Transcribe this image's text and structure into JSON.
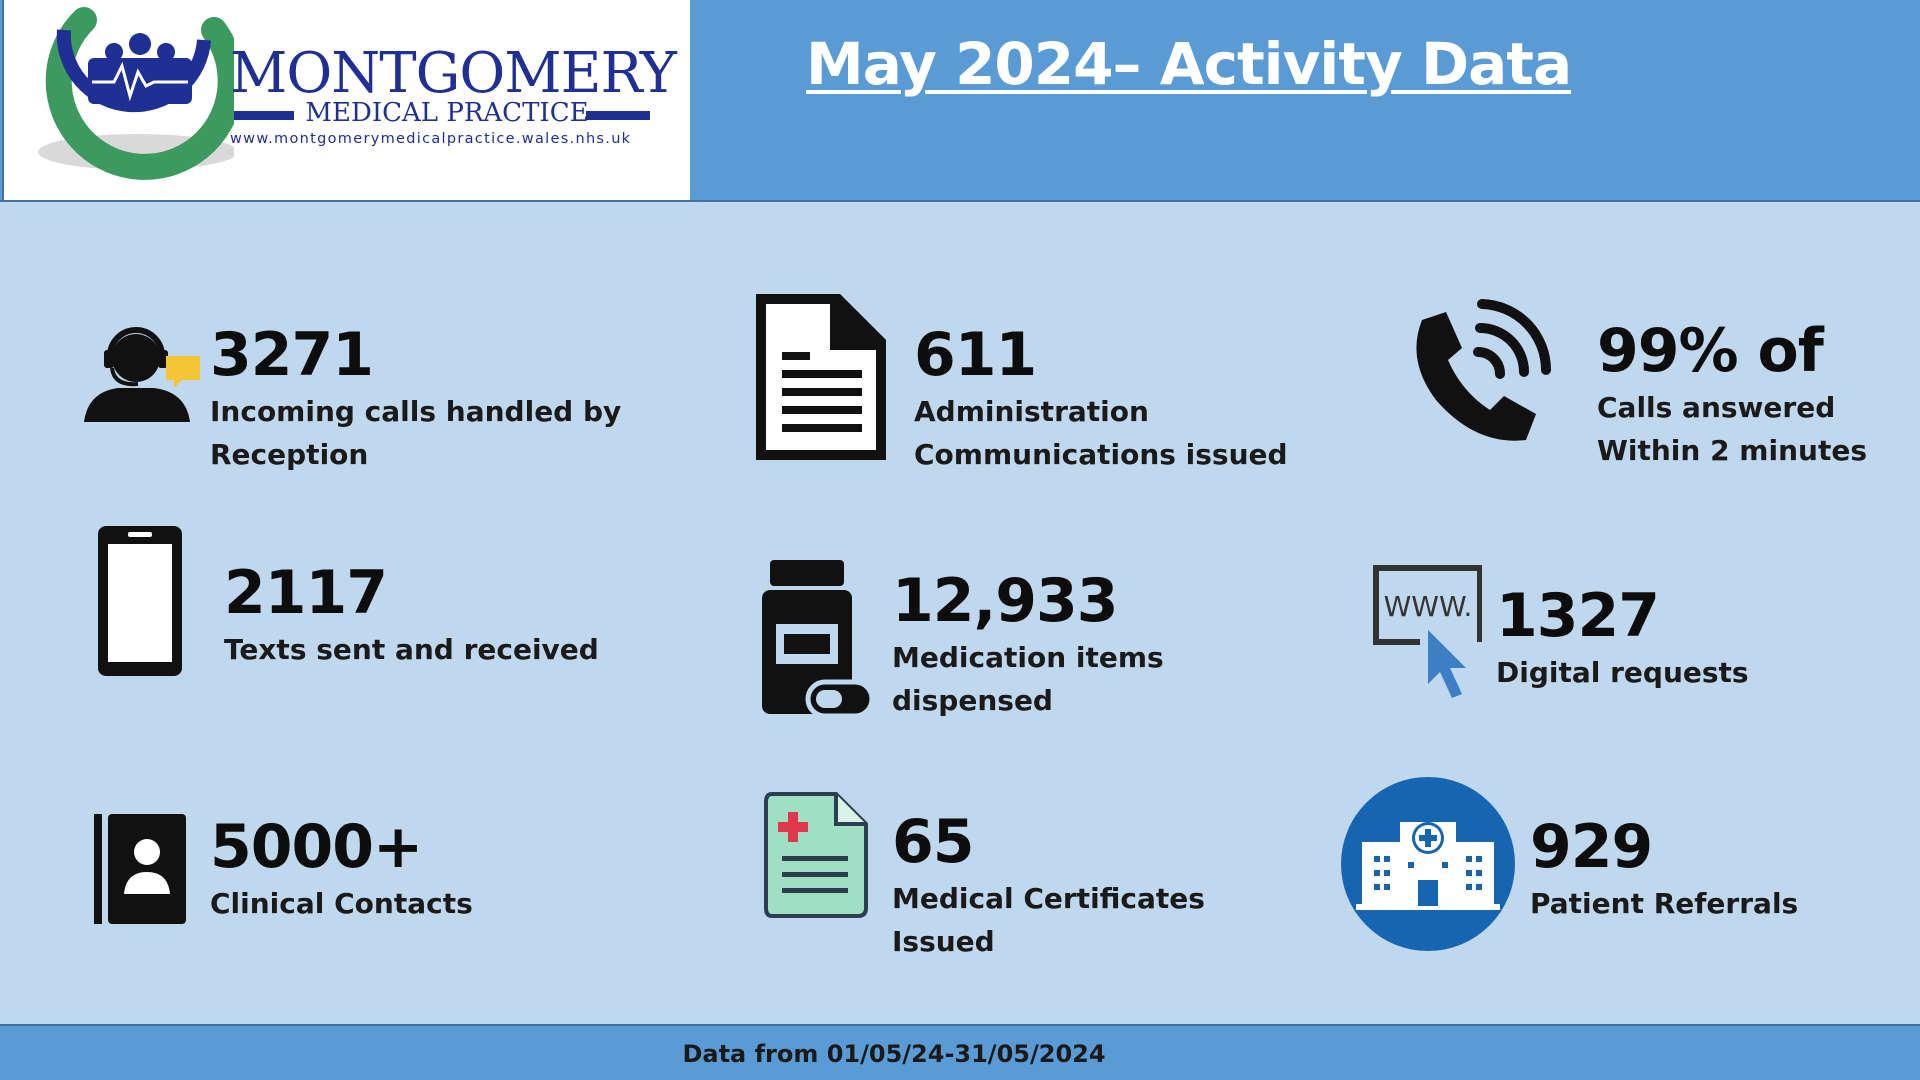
{
  "logo": {
    "name": "MONTGOMERY",
    "subtitle": "MEDICAL PRACTICE",
    "url": "www.montgomerymedicalpractice.wales.nhs.uk"
  },
  "title": "May 2024– Activity Data",
  "stats": [
    {
      "value": "3271",
      "line1": "Incoming calls handled by",
      "line2": "Reception",
      "icon": "receptionist-headset-icon"
    },
    {
      "value": "611",
      "line1": "Administration",
      "line2": "Communications issued",
      "icon": "document-icon"
    },
    {
      "value": "99% of",
      "line1": "Calls answered",
      "line2": "Within 2 minutes",
      "icon": "phone-ringing-icon"
    },
    {
      "value": "2117",
      "line1": "Texts sent and received",
      "line2": "",
      "icon": "mobile-phone-icon"
    },
    {
      "value": "12,933",
      "line1": "Medication items",
      "line2": "dispensed",
      "icon": "medicine-bottle-icon"
    },
    {
      "value": "1327",
      "line1": "Digital requests",
      "line2": "",
      "icon": "www-cursor-icon"
    },
    {
      "value": "5000+",
      "line1": "Clinical Contacts",
      "line2": "",
      "icon": "contact-book-icon"
    },
    {
      "value": "65",
      "line1": "Medical Certificates",
      "line2": "Issued",
      "icon": "medical-certificate-icon"
    },
    {
      "value": "929",
      "line1": "Patient Referrals",
      "line2": "",
      "icon": "hospital-icon"
    }
  ],
  "www_icon_text": "WWW.",
  "footer": "Data from 01/05/24-31/05/2024",
  "colors": {
    "background": "#c0d8ee",
    "header": "#5b9bd5",
    "logo_blue": "#1f2f93",
    "logo_green": "#2e8b57",
    "hospital_circle": "#1565b0",
    "cursor_blue": "#3d7fc4",
    "certificate_green": "#9fe0c2",
    "cross_red": "#e0384a"
  }
}
